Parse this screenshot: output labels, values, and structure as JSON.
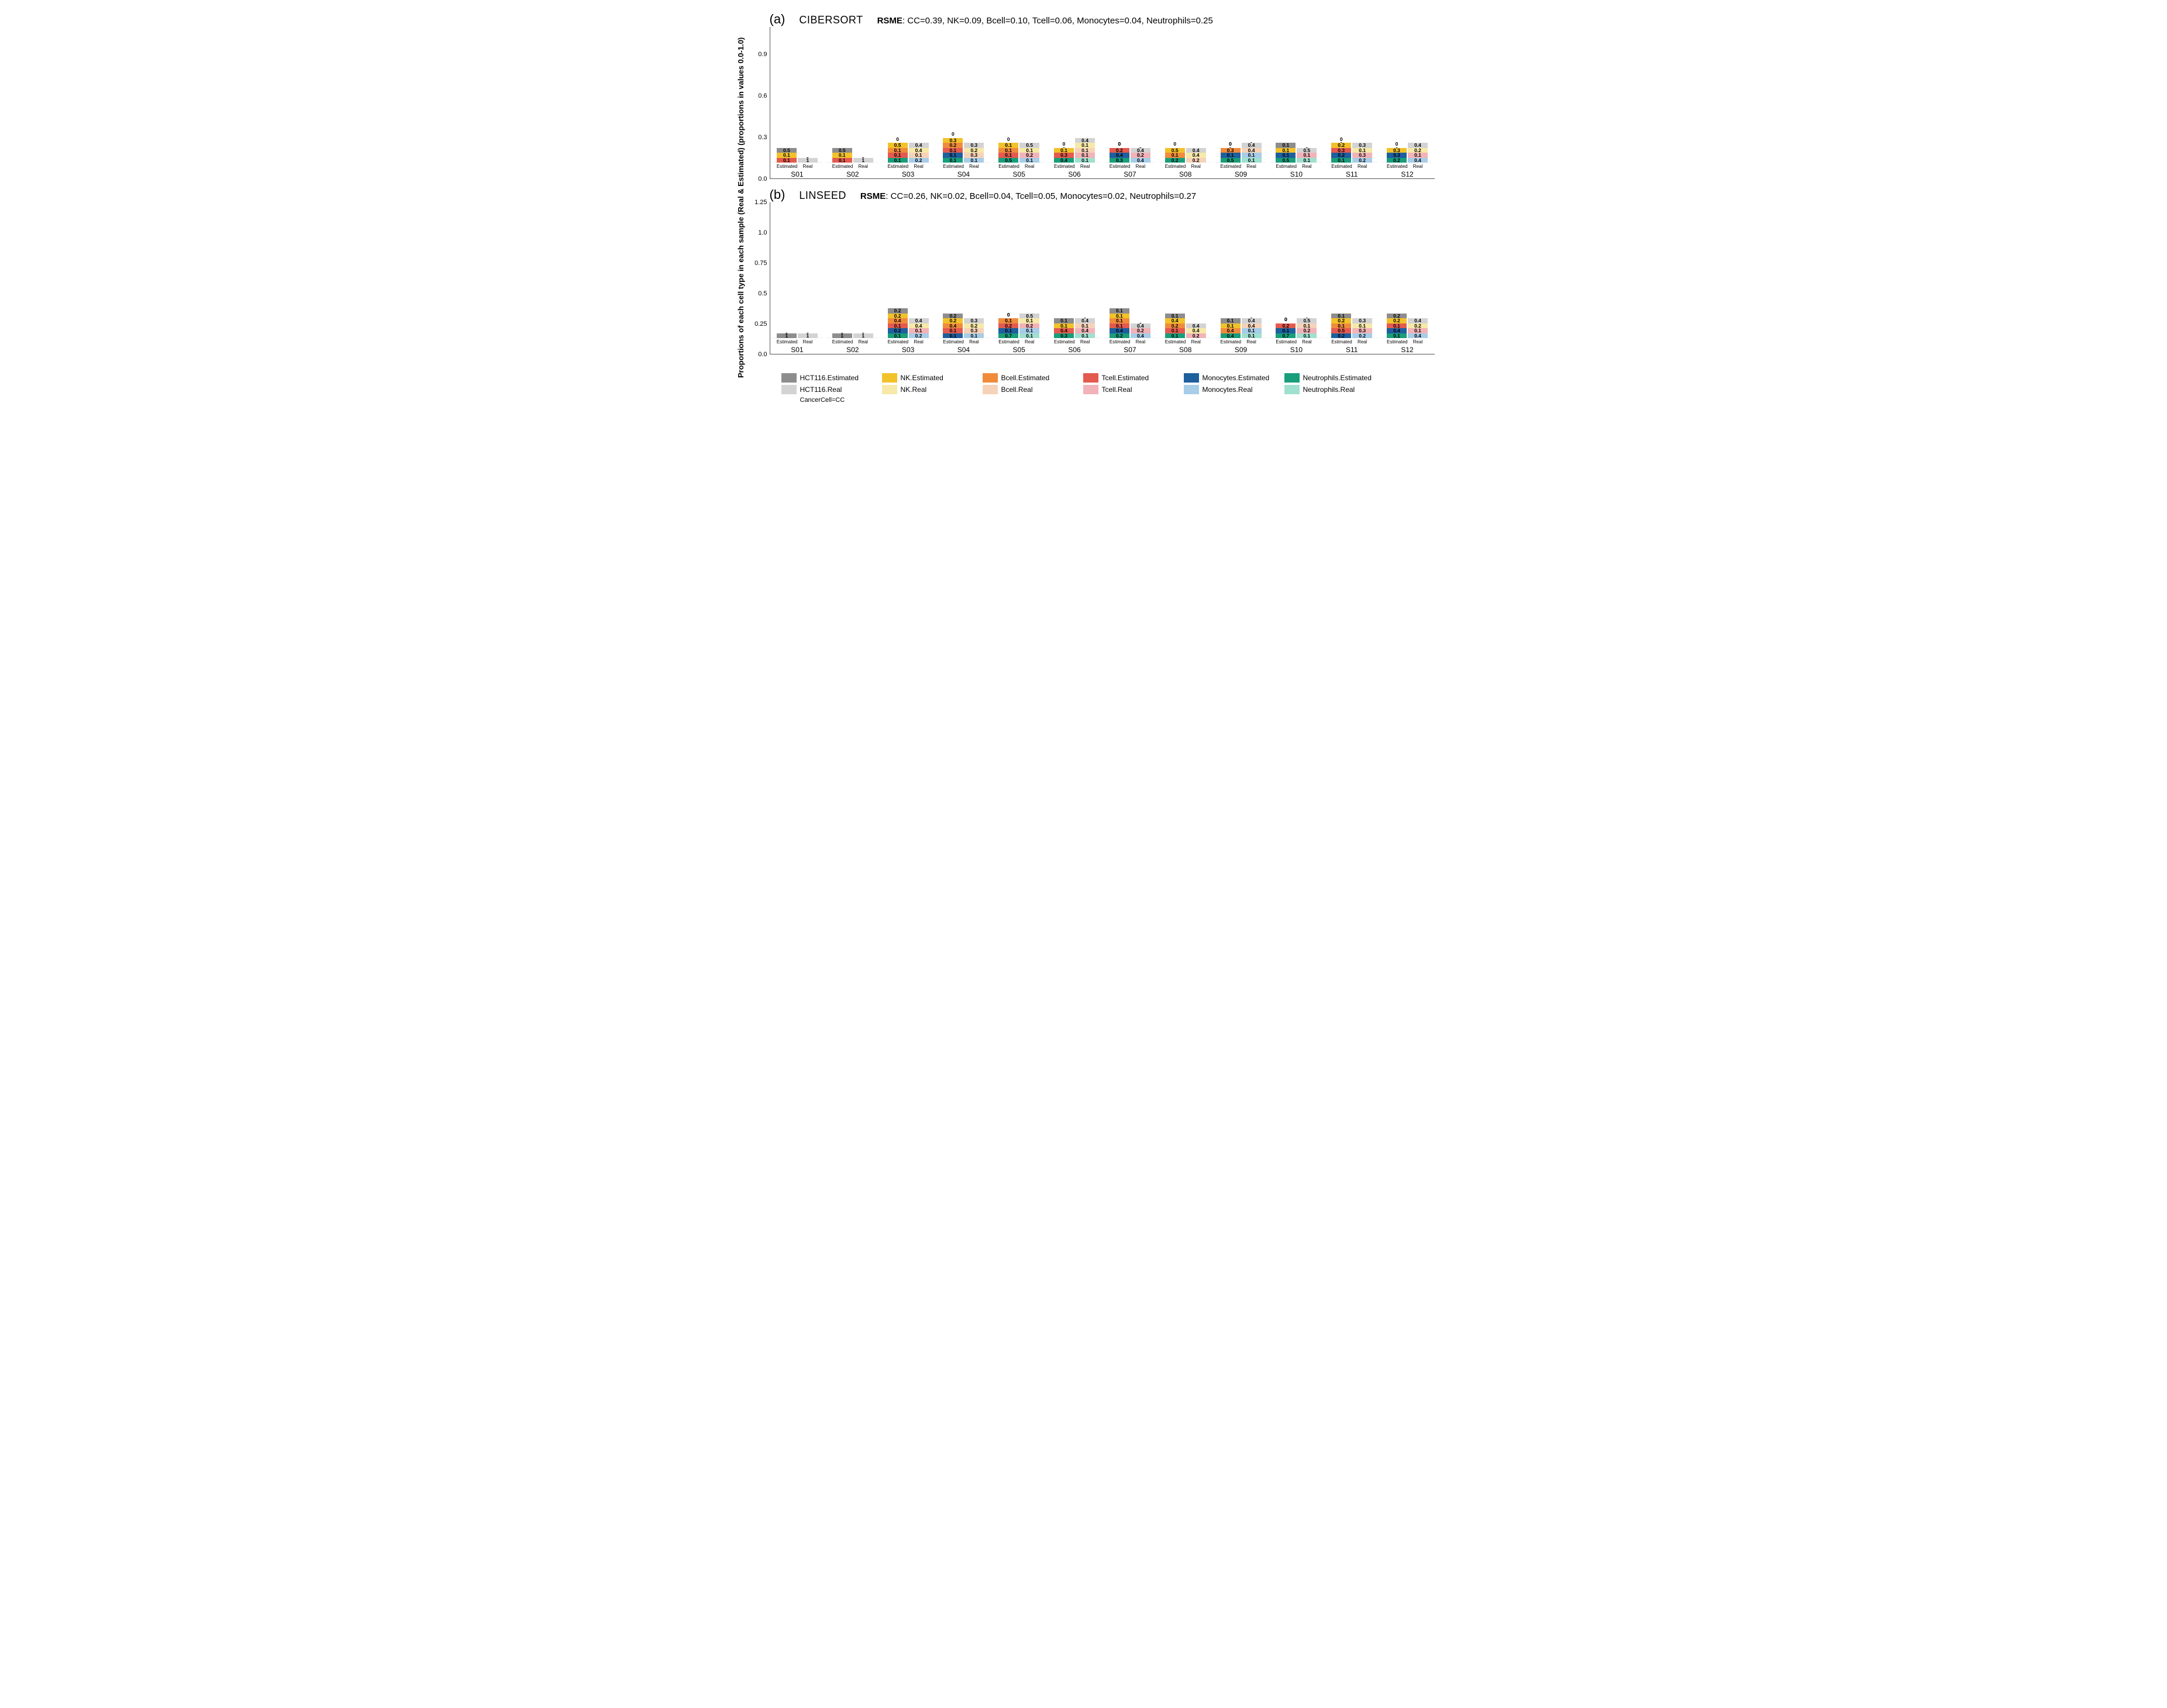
{
  "type": "stacked-bar-multi-panel",
  "background_color": "#ffffff",
  "text_color": "#000000",
  "font_family": "Arial",
  "y_axis_global_label": "Proportions of each cell type in each sample (Real & Estimated) (proportions in values 0.0-1.0)",
  "y_axis_global_fontsize": 13,
  "y_axis_global_fontweight": "bold",
  "cell_types_order": [
    "HCT116",
    "NK",
    "Bcell",
    "Tcell",
    "Monocytes",
    "Neutrophils"
  ],
  "colors": {
    "HCT116.Estimated": "#8d8d8d",
    "HCT116.Real": "#d3d3d3",
    "NK.Estimated": "#f2c22b",
    "NK.Real": "#f7e9a8",
    "Bcell.Estimated": "#f08b3c",
    "Bcell.Real": "#f6d3b8",
    "Tcell.Estimated": "#e35a4f",
    "Tcell.Real": "#f2b3b8",
    "Monocytes.Estimated": "#1e5f9e",
    "Monocytes.Real": "#a7cde8",
    "Neutrophils.Estimated": "#189e7a",
    "Neutrophils.Real": "#9fe0cf"
  },
  "grid_color": "#e0e0e0",
  "bar_label_fontsize": 8.5,
  "tick_fontsize": 11,
  "xlabel_fontsize": 8,
  "sample_label_fontsize": 12,
  "bar_xlabels": [
    "Estimated",
    "Real"
  ],
  "legend": {
    "rows": [
      [
        {
          "key": "HCT116.Estimated",
          "label": "HCT116.Estimated"
        },
        {
          "key": "NK.Estimated",
          "label": "NK.Estimated"
        },
        {
          "key": "Bcell.Estimated",
          "label": "Bcell.Estimated"
        },
        {
          "key": "Tcell.Estimated",
          "label": "Tcell.Estimated"
        },
        {
          "key": "Monocytes.Estimated",
          "label": "Monocytes.Estimated"
        },
        {
          "key": "Neutrophils.Estimated",
          "label": "Neutrophils.Estimated"
        }
      ],
      [
        {
          "key": "HCT116.Real",
          "label": "HCT116.Real"
        },
        {
          "key": "NK.Real",
          "label": "NK.Real"
        },
        {
          "key": "Bcell.Real",
          "label": "Bcell.Real"
        },
        {
          "key": "Tcell.Real",
          "label": "Tcell.Real"
        },
        {
          "key": "Monocytes.Real",
          "label": "Monocytes.Real"
        },
        {
          "key": "Neutrophils.Real",
          "label": "Neutrophils.Real"
        }
      ]
    ],
    "note": "CancerCell=CC",
    "swatch_w": 26,
    "swatch_h": 16,
    "fontsize": 12
  },
  "panels": [
    {
      "letter": "(a)",
      "title": "CIBERSORT",
      "rsme_label": "RSME",
      "rsme_text": ": CC=0.39, NK=0.09, Bcell=0.10, Tcell=0.06, Monocytes=0.04, Neutrophils=0.25",
      "ylim": [
        0,
        1.1
      ],
      "yticks": [
        0.0,
        0.3,
        0.6,
        0.9
      ],
      "ytick_step_bg": 0.3,
      "letter_fontsize": 22,
      "title_fontsize": 18,
      "rsme_fontsize": 15,
      "samples": [
        {
          "name": "S01",
          "Estimated": {
            "Neutrophils": 0,
            "Monocytes": 0,
            "Tcell": 0.1,
            "Bcell": 0,
            "NK": 0.1,
            "HCT116": 0.5
          },
          "Real": {
            "Neutrophils": 0,
            "Monocytes": 0,
            "Tcell": 0,
            "Bcell": 0,
            "NK": 0,
            "HCT116": 1.0
          }
        },
        {
          "name": "S02",
          "Estimated": {
            "Neutrophils": 0,
            "Monocytes": 0,
            "Tcell": 0.1,
            "Bcell": 0,
            "NK": 0.1,
            "HCT116": 0.5
          },
          "Real": {
            "Neutrophils": 0,
            "Monocytes": 0,
            "Tcell": 0,
            "Bcell": 0,
            "NK": 0,
            "HCT116": 1.0
          }
        },
        {
          "name": "S03",
          "Estimated": {
            "Neutrophils": 0.1,
            "Monocytes": 0,
            "Tcell": 0.1,
            "Bcell": 0.1,
            "NK": 0.5,
            "HCT116": 0
          },
          "Real": {
            "Neutrophils": 0,
            "Monocytes": 0.2,
            "Tcell": 0,
            "Bcell": 0.1,
            "NK": 0.4,
            "HCT116": 0.4
          }
        },
        {
          "name": "S04",
          "Estimated": {
            "Neutrophils": 0.1,
            "Monocytes": 0.1,
            "Tcell": 0.1,
            "Bcell": 0.2,
            "NK": 0.3,
            "HCT116": 0
          },
          "Real": {
            "Neutrophils": 0,
            "Monocytes": 0.1,
            "Tcell": 0,
            "Bcell": 0.3,
            "NK": 0.2,
            "HCT116": 0.3
          }
        },
        {
          "name": "S05",
          "Estimated": {
            "Neutrophils": 0.5,
            "Monocytes": 0,
            "Tcell": 0.1,
            "Bcell": 0.1,
            "NK": 0.1,
            "HCT116": 0
          },
          "Real": {
            "Neutrophils": 0,
            "Monocytes": 0.1,
            "Tcell": 0.2,
            "Bcell": 0,
            "NK": 0.1,
            "HCT116": 0.5
          }
        },
        {
          "name": "S06",
          "Estimated": {
            "Neutrophils": 0.4,
            "Monocytes": 0,
            "Tcell": 0.3,
            "Bcell": 0,
            "NK": 0.1,
            "HCT116": 0
          },
          "Real": {
            "Neutrophils": 0.1,
            "Monocytes": 0,
            "Tcell": 0.1,
            "Bcell": 0.1,
            "NK": 0.1,
            "HCT116": 0.4
          }
        },
        {
          "name": "S07",
          "Estimated": {
            "Neutrophils": 0.3,
            "Monocytes": 0.4,
            "Tcell": 0.2,
            "Bcell": 0,
            "NK": 0,
            "HCT116": 0
          },
          "Real": {
            "Neutrophils": 0,
            "Monocytes": 0.4,
            "Tcell": 0.2,
            "Bcell": 0,
            "NK": 0,
            "HCT116": 0.4
          }
        },
        {
          "name": "S08",
          "Estimated": {
            "Neutrophils": 0.2,
            "Monocytes": 0,
            "Tcell": 0,
            "Bcell": 0.1,
            "NK": 0.5,
            "HCT116": 0
          },
          "Real": {
            "Neutrophils": 0,
            "Monocytes": 0,
            "Tcell": 0,
            "Bcell": 0.2,
            "NK": 0.4,
            "HCT116": 0.4
          }
        },
        {
          "name": "S09",
          "Estimated": {
            "Neutrophils": 0.5,
            "Monocytes": 0.1,
            "Tcell": 0,
            "Bcell": 0.3,
            "NK": 0,
            "HCT116": 0
          },
          "Real": {
            "Neutrophils": 0.1,
            "Monocytes": 0.1,
            "Tcell": 0,
            "Bcell": 0.4,
            "NK": 0,
            "HCT116": 0.4
          }
        },
        {
          "name": "S10",
          "Estimated": {
            "Neutrophils": 0.5,
            "Monocytes": 0.1,
            "Tcell": 0,
            "Bcell": 0,
            "NK": 0.1,
            "HCT116": 0.1
          },
          "Real": {
            "Neutrophils": 0.1,
            "Monocytes": 0,
            "Tcell": 0.1,
            "Bcell": 0,
            "NK": 0,
            "HCT116": 0.5
          }
        },
        {
          "name": "S11",
          "Estimated": {
            "Neutrophils": 0.1,
            "Monocytes": 0.2,
            "Tcell": 0.3,
            "Bcell": 0,
            "NK": 0.2,
            "HCT116": 0
          },
          "Real": {
            "Neutrophils": 0,
            "Monocytes": 0.2,
            "Tcell": 0.3,
            "Bcell": 0,
            "NK": 0.1,
            "HCT116": 0.3
          }
        },
        {
          "name": "S12",
          "Estimated": {
            "Neutrophils": 0.2,
            "Monocytes": 0.3,
            "Tcell": 0,
            "Bcell": 0,
            "NK": 0.3,
            "HCT116": 0
          },
          "Real": {
            "Neutrophils": 0,
            "Monocytes": 0.4,
            "Tcell": 0.1,
            "Bcell": 0,
            "NK": 0.2,
            "HCT116": 0.4
          }
        }
      ]
    },
    {
      "letter": "(b)",
      "title": "LINSEED",
      "rsme_label": "RSME",
      "rsme_text": ": CC=0.26, NK=0.02, Bcell=0.04, Tcell=0.05, Monocytes=0.02, Neutrophils=0.27",
      "ylim": [
        0,
        1.25
      ],
      "yticks": [
        0.0,
        0.25,
        0.5,
        0.75,
        1.0,
        1.25
      ],
      "ytick_step_bg": 0.25,
      "letter_fontsize": 22,
      "title_fontsize": 18,
      "rsme_fontsize": 15,
      "samples": [
        {
          "name": "S01",
          "Estimated": {
            "Neutrophils": 0,
            "Monocytes": 0,
            "Tcell": 0,
            "Bcell": 0,
            "NK": 0,
            "HCT116": 1.0
          },
          "Real": {
            "Neutrophils": 0,
            "Monocytes": 0,
            "Tcell": 0,
            "Bcell": 0,
            "NK": 0,
            "HCT116": 1.0
          }
        },
        {
          "name": "S02",
          "Estimated": {
            "Neutrophils": 0,
            "Monocytes": 0,
            "Tcell": 0,
            "Bcell": 0,
            "NK": 0,
            "HCT116": 1.0
          },
          "Real": {
            "Neutrophils": 0,
            "Monocytes": 0,
            "Tcell": 0,
            "Bcell": 0,
            "NK": 0,
            "HCT116": 1.0
          }
        },
        {
          "name": "S03",
          "Estimated": {
            "Neutrophils": 0.1,
            "Monocytes": 0.2,
            "Tcell": 0.1,
            "Bcell": 0.4,
            "NK": 0.2,
            "HCT116": 0.2
          },
          "Real": {
            "Neutrophils": 0,
            "Monocytes": 0.2,
            "Tcell": 0.1,
            "Bcell": 0,
            "NK": 0.4,
            "HCT116": 0.4
          }
        },
        {
          "name": "S04",
          "Estimated": {
            "Neutrophils": 0,
            "Monocytes": 0.1,
            "Tcell": 0.1,
            "Bcell": 0.4,
            "NK": 0.2,
            "HCT116": 0.2
          },
          "Real": {
            "Neutrophils": 0,
            "Monocytes": 0.1,
            "Tcell": 0,
            "Bcell": 0.3,
            "NK": 0.2,
            "HCT116": 0.3
          }
        },
        {
          "name": "S05",
          "Estimated": {
            "Neutrophils": 0.7,
            "Monocytes": 0.1,
            "Tcell": 0.2,
            "Bcell": 0.1,
            "NK": 0,
            "HCT116": 0
          },
          "Real": {
            "Neutrophils": 0.1,
            "Monocytes": 0.1,
            "Tcell": 0.2,
            "Bcell": 0,
            "NK": 0.1,
            "HCT116": 0.5
          }
        },
        {
          "name": "S06",
          "Estimated": {
            "Neutrophils": 0.3,
            "Monocytes": 0,
            "Tcell": 0.4,
            "Bcell": 0,
            "NK": 0.1,
            "HCT116": 0.1
          },
          "Real": {
            "Neutrophils": 0.1,
            "Monocytes": 0,
            "Tcell": 0.4,
            "Bcell": 0.1,
            "NK": 0,
            "HCT116": 0.4
          }
        },
        {
          "name": "S07",
          "Estimated": {
            "Neutrophils": 0.2,
            "Monocytes": 0.4,
            "Tcell": 0.1,
            "Bcell": 0.1,
            "NK": 0.1,
            "HCT116": 0.1
          },
          "Real": {
            "Neutrophils": 0,
            "Monocytes": 0.4,
            "Tcell": 0.2,
            "Bcell": 0,
            "NK": 0,
            "HCT116": 0.4
          }
        },
        {
          "name": "S08",
          "Estimated": {
            "Neutrophils": 0.1,
            "Monocytes": 0,
            "Tcell": 0.1,
            "Bcell": 0.2,
            "NK": 0.4,
            "HCT116": 0.1
          },
          "Real": {
            "Neutrophils": 0,
            "Monocytes": 0,
            "Tcell": 0.2,
            "Bcell": 0,
            "NK": 0.4,
            "HCT116": 0.4
          }
        },
        {
          "name": "S09",
          "Estimated": {
            "Neutrophils": 0.4,
            "Monocytes": 0,
            "Tcell": 0,
            "Bcell": 0.4,
            "NK": 0.1,
            "HCT116": 0.1
          },
          "Real": {
            "Neutrophils": 0.1,
            "Monocytes": 0.1,
            "Tcell": 0,
            "Bcell": 0.4,
            "NK": 0,
            "HCT116": 0.4
          }
        },
        {
          "name": "S10",
          "Estimated": {
            "Neutrophils": 0.7,
            "Monocytes": 0.1,
            "Tcell": 0.2,
            "Bcell": 0,
            "NK": 0,
            "HCT116": 0
          },
          "Real": {
            "Neutrophils": 0.1,
            "Monocytes": 0,
            "Tcell": 0.2,
            "Bcell": 0.1,
            "NK": 0,
            "HCT116": 0.5
          }
        },
        {
          "name": "S11",
          "Estimated": {
            "Neutrophils": 0,
            "Monocytes": 0.2,
            "Tcell": 0.5,
            "Bcell": 0.1,
            "NK": 0.2,
            "HCT116": 0.1
          },
          "Real": {
            "Neutrophils": 0,
            "Monocytes": 0.2,
            "Tcell": 0.3,
            "Bcell": 0,
            "NK": 0.1,
            "HCT116": 0.3
          }
        },
        {
          "name": "S12",
          "Estimated": {
            "Neutrophils": 0.1,
            "Monocytes": 0.4,
            "Tcell": 0.1,
            "Bcell": 0,
            "NK": 0.2,
            "HCT116": 0.2
          },
          "Real": {
            "Neutrophils": 0,
            "Monocytes": 0.4,
            "Tcell": 0.1,
            "Bcell": 0,
            "NK": 0.2,
            "HCT116": 0.4
          }
        }
      ]
    }
  ]
}
